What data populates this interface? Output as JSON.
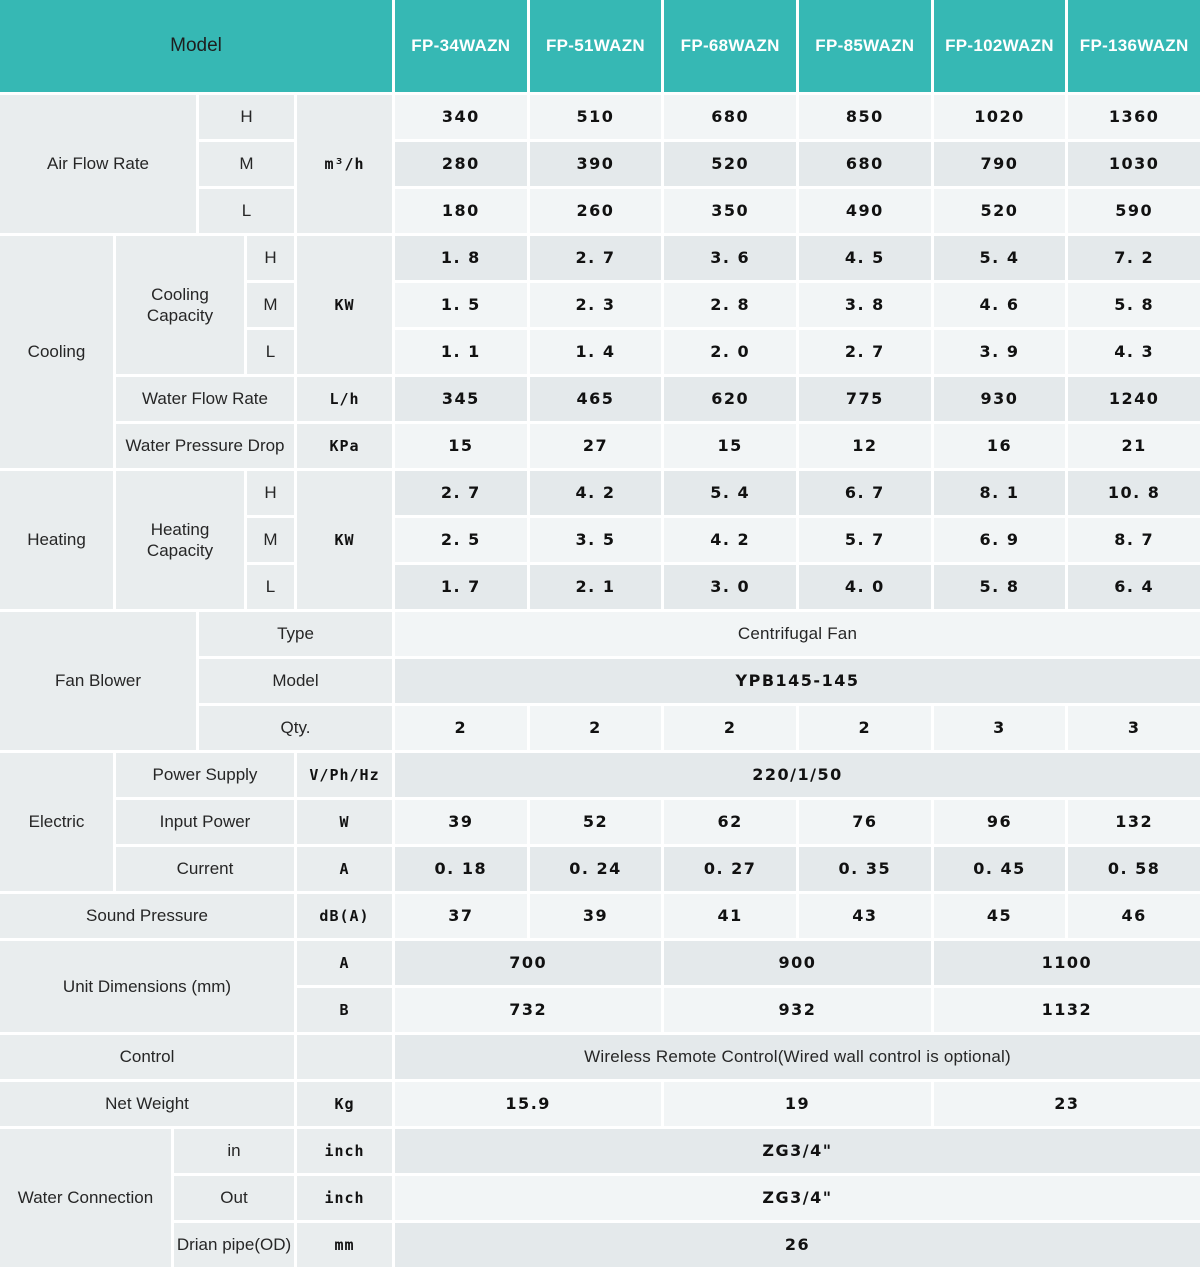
{
  "colors": {
    "header_bg": "#36b8b4",
    "header_text": "#ffffff",
    "row_light": "#f2f5f6",
    "row_dark": "#e4e9eb",
    "label_bg": "#e9edee",
    "grid_line": "#ffffff"
  },
  "table": {
    "model_header": "Model",
    "models": [
      "FP-34WAZN",
      "FP-51WAZN",
      "FP-68WAZN",
      "FP-85WAZN",
      "FP-102WAZN",
      "FP-136WAZN"
    ],
    "air": {
      "label": "Air Flow Rate",
      "unit": "m³/h",
      "h": {
        "label": "H",
        "v": [
          "340",
          "510",
          "680",
          "850",
          "1020",
          "1360"
        ]
      },
      "m": {
        "label": "M",
        "v": [
          "280",
          "390",
          "520",
          "680",
          "790",
          "1030"
        ]
      },
      "l": {
        "label": "L",
        "v": [
          "180",
          "260",
          "350",
          "490",
          "520",
          "590"
        ]
      }
    },
    "cooling": {
      "label": "Cooling",
      "capacity": {
        "label": "Cooling Capacity",
        "unit": "KW",
        "h": {
          "label": "H",
          "v": [
            "1. 8",
            "2. 7",
            "3. 6",
            "4. 5",
            "5. 4",
            "7. 2"
          ]
        },
        "m": {
          "label": "M",
          "v": [
            "1. 5",
            "2. 3",
            "2. 8",
            "3. 8",
            "4. 6",
            "5. 8"
          ]
        },
        "l": {
          "label": "L",
          "v": [
            "1. 1",
            "1. 4",
            "2. 0",
            "2. 7",
            "3. 9",
            "4. 3"
          ]
        }
      },
      "water_flow": {
        "label": "Water Flow Rate",
        "unit": "L/h",
        "v": [
          "345",
          "465",
          "620",
          "775",
          "930",
          "1240"
        ]
      },
      "pressure_drop": {
        "label": "Water Pressure Drop",
        "unit": "KPa",
        "v": [
          "15",
          "27",
          "15",
          "12",
          "16",
          "21"
        ]
      }
    },
    "heating": {
      "label": "Heating",
      "capacity": {
        "label": "Heating Capacity",
        "unit": "KW",
        "h": {
          "label": "H",
          "v": [
            "2. 7",
            "4. 2",
            "5. 4",
            "6. 7",
            "8. 1",
            "10. 8"
          ]
        },
        "m": {
          "label": "M",
          "v": [
            "2. 5",
            "3. 5",
            "4. 2",
            "5. 7",
            "6. 9",
            "8. 7"
          ]
        },
        "l": {
          "label": "L",
          "v": [
            "1. 7",
            "2. 1",
            "3. 0",
            "4. 0",
            "5. 8",
            "6. 4"
          ]
        }
      }
    },
    "fan": {
      "label": "Fan Blower",
      "type": {
        "label": "Type",
        "value": "Centrifugal Fan"
      },
      "model": {
        "label": "Model",
        "value": "YPB145-145"
      },
      "qty": {
        "label": "Qty.",
        "v": [
          "2",
          "2",
          "2",
          "2",
          "3",
          "3"
        ]
      }
    },
    "electric": {
      "label": "Electric",
      "power_supply": {
        "label": "Power Supply",
        "unit": "V/Ph/Hz",
        "value": "220/1/50"
      },
      "input_power": {
        "label": "Input Power",
        "unit": "W",
        "v": [
          "39",
          "52",
          "62",
          "76",
          "96",
          "132"
        ]
      },
      "current": {
        "label": "Current",
        "unit": "A",
        "v": [
          "0. 18",
          "0. 24",
          "0. 27",
          "0. 35",
          "0. 45",
          "0. 58"
        ]
      }
    },
    "sound": {
      "label": "Sound Pressure",
      "unit": "dB(A)",
      "v": [
        "37",
        "39",
        "41",
        "43",
        "45",
        "46"
      ]
    },
    "dimensions": {
      "label": "Unit Dimensions (mm)",
      "a": {
        "label": "A",
        "v": [
          "700",
          "900",
          "1100"
        ]
      },
      "b": {
        "label": "B",
        "v": [
          "732",
          "932",
          "1132"
        ]
      }
    },
    "control": {
      "label": "Control",
      "value": "Wireless Remote Control(Wired wall control is optional)"
    },
    "net_weight": {
      "label": "Net Weight",
      "unit": "Kg",
      "v": [
        "15.9",
        "19",
        "23"
      ]
    },
    "water": {
      "label": "Water Connection",
      "in": {
        "label": "in",
        "unit": "inch",
        "value": "ZG3/4\""
      },
      "out": {
        "label": "Out",
        "unit": "inch",
        "value": "ZG3/4\""
      },
      "drain": {
        "label": "Drian pipe(OD)",
        "unit": "mm",
        "value": "26"
      }
    }
  }
}
